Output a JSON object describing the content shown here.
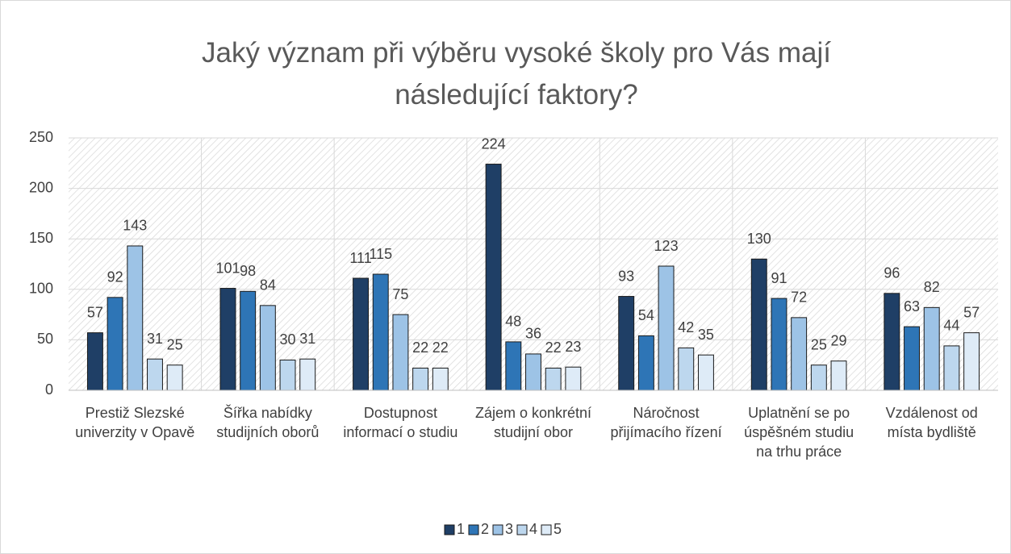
{
  "chart_data": {
    "type": "bar",
    "title": "Jaký význam při výběru vysoké školy pro Vás mají následující faktory?",
    "categories": [
      "Prestiž Slezské univerzity v Opavě",
      "Šířka nabídky studijních oborů",
      "Dostupnost informací o studiu",
      "Zájem o konkrétní studijní obor",
      "Náročnost přijímacího řízení",
      "Uplatnění se po úspěšném studiu na trhu práce",
      "Vzdálenost od místa bydliště"
    ],
    "series": [
      {
        "name": "1",
        "color": "#1f3f66",
        "values": [
          57,
          101,
          111,
          224,
          93,
          130,
          96
        ]
      },
      {
        "name": "2",
        "color": "#2e75b6",
        "values": [
          92,
          98,
          115,
          48,
          54,
          91,
          63
        ]
      },
      {
        "name": "3",
        "color": "#9dc3e6",
        "values": [
          143,
          84,
          75,
          36,
          123,
          72,
          82
        ]
      },
      {
        "name": "4",
        "color": "#bdd7ee",
        "values": [
          31,
          30,
          22,
          22,
          42,
          25,
          44
        ]
      },
      {
        "name": "5",
        "color": "#deebf7",
        "values": [
          25,
          31,
          22,
          23,
          35,
          29,
          57
        ]
      }
    ],
    "ylim": [
      0,
      250
    ],
    "yticks": [
      0,
      50,
      100,
      150,
      200,
      250
    ],
    "grid": true,
    "legend": "bottom"
  }
}
